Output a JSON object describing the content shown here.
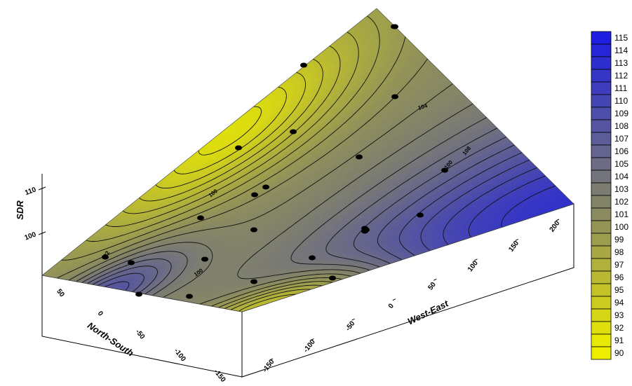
{
  "chart_data": {
    "type": "surface-contour-3d",
    "xlabel": "West-East",
    "ylabel": "North-South",
    "zlabel": "SDR",
    "x_ticks": [
      "-150",
      "-100",
      "-50",
      "0",
      "50",
      "100",
      "150",
      "200"
    ],
    "y_ticks": [
      "50",
      "0",
      "-50",
      "-100",
      "-150"
    ],
    "z_ticks": [
      "100",
      "110"
    ],
    "contour_labels": [
      "92",
      "100",
      "100",
      "100",
      "104",
      "108"
    ],
    "colorbar": {
      "min": 90,
      "max": 115,
      "labels": [
        "115",
        "114",
        "113",
        "112",
        "111",
        "110",
        "109",
        "108",
        "107",
        "106",
        "105",
        "104",
        "103",
        "102",
        "101",
        "100",
        "99",
        "98",
        "97",
        "96",
        "95",
        "94",
        "93",
        "92",
        "91",
        "90"
      ],
      "low_color": "#eded00",
      "mid_color": "#8f8f5c",
      "high_color": "#1a1ae6"
    },
    "sample_points": 24
  }
}
